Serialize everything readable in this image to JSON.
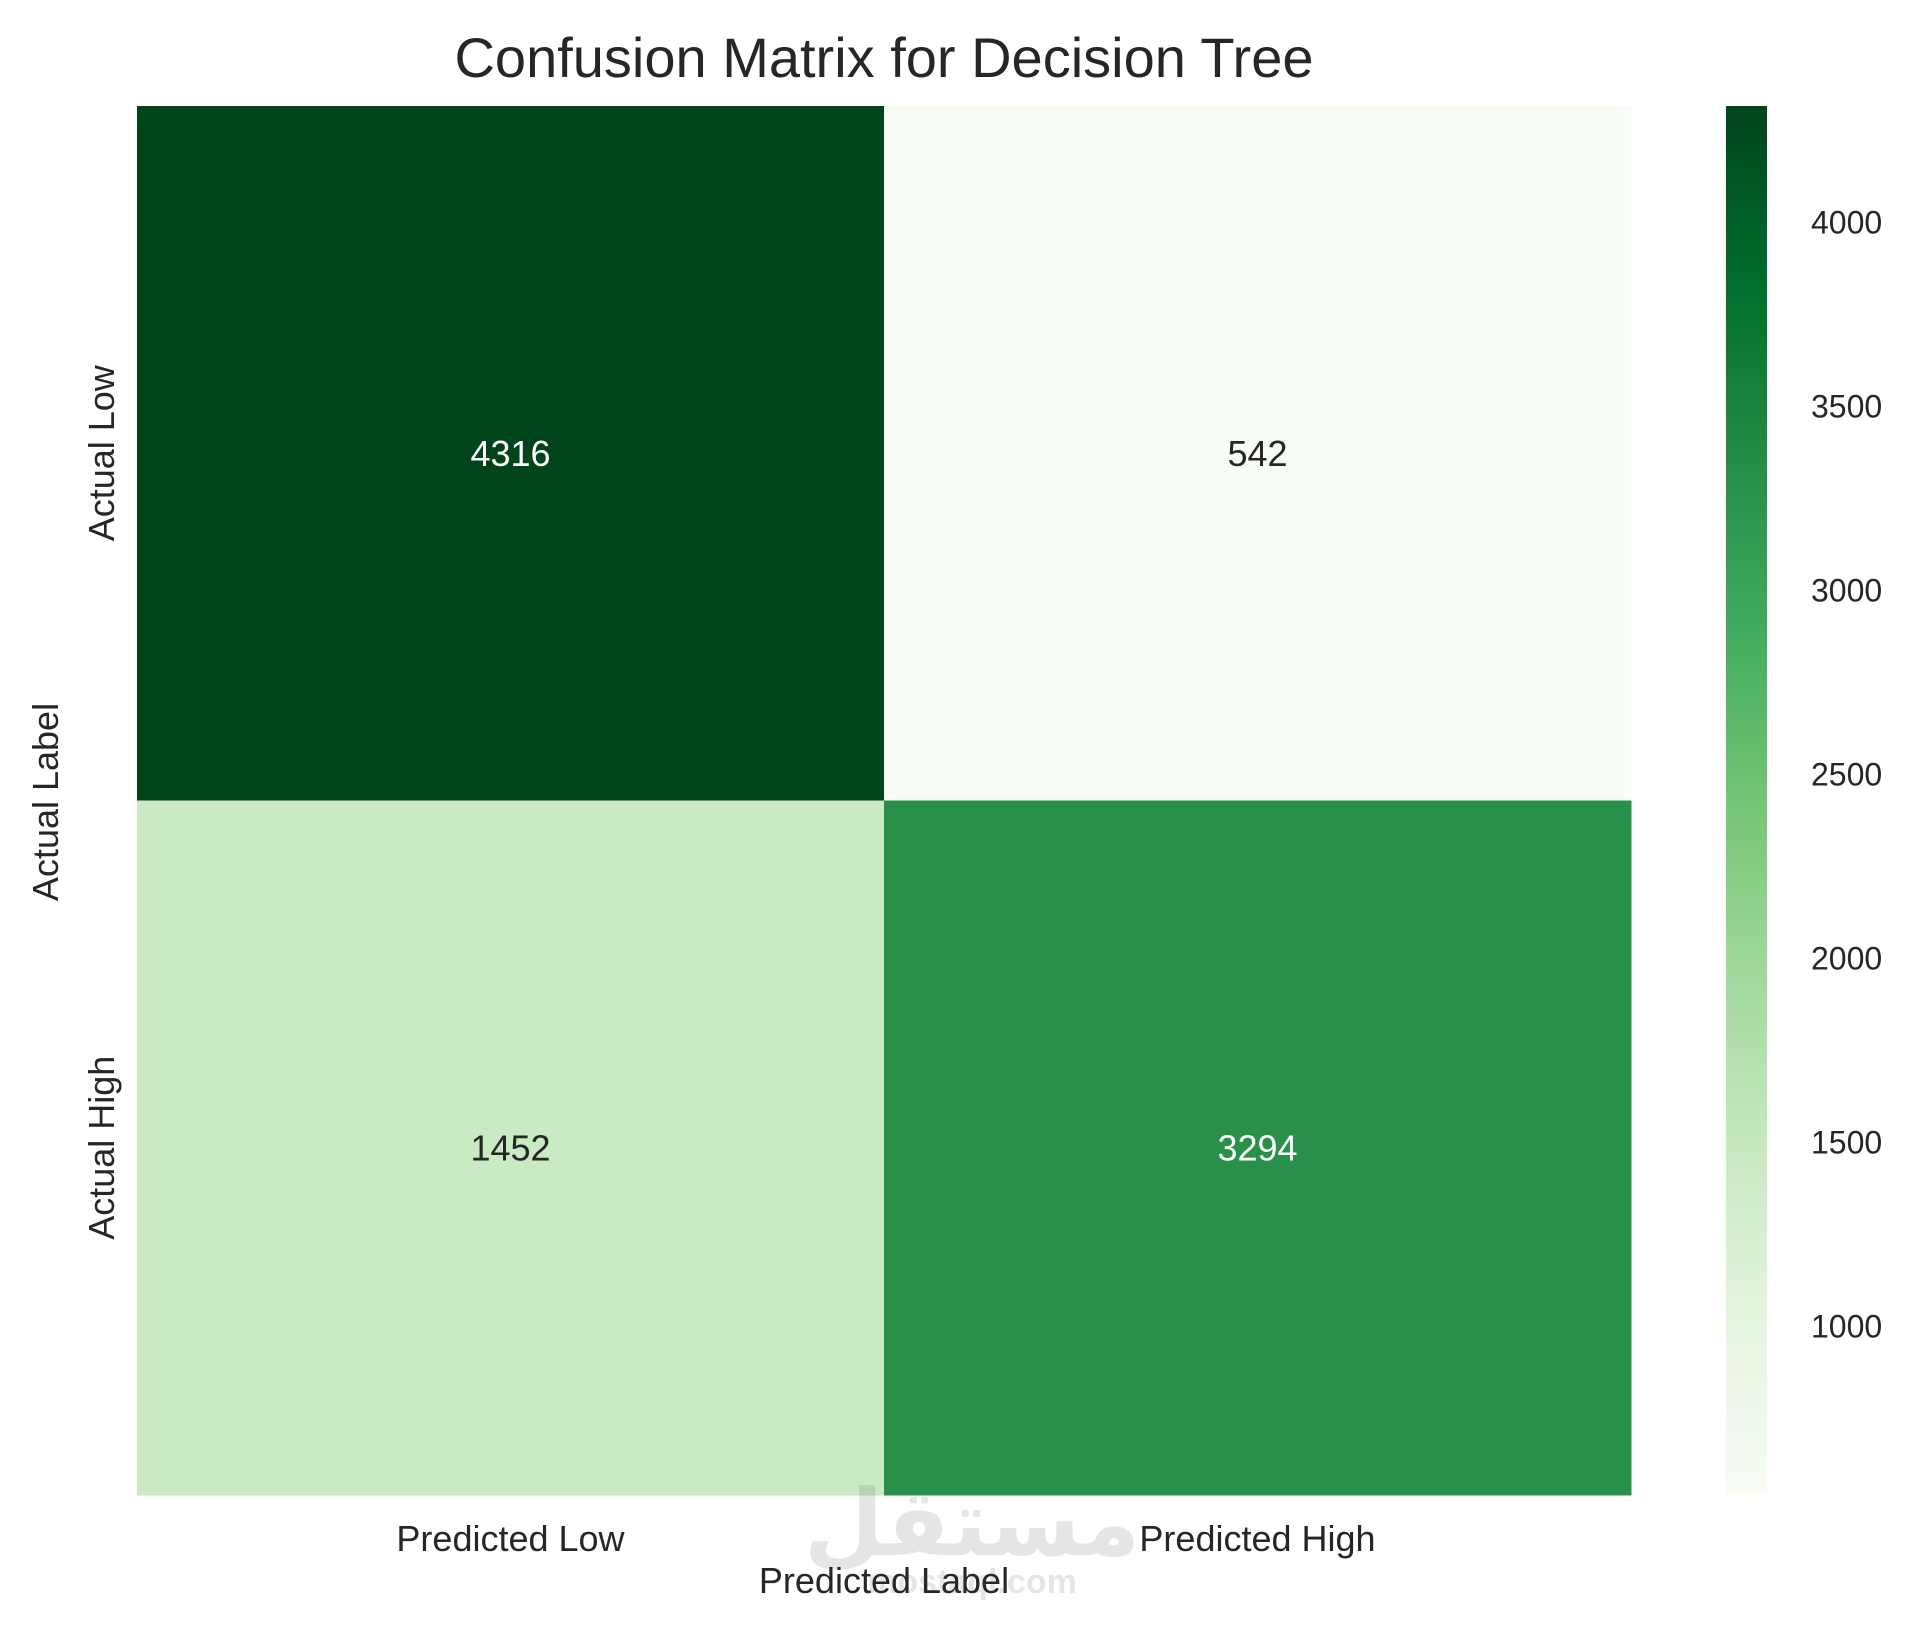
{
  "chart_data": {
    "type": "heatmap",
    "title": "Confusion Matrix for Decision Tree",
    "xlabel": "Predicted Label",
    "ylabel": "Actual Label",
    "x_categories": [
      "Predicted Low",
      "Predicted High"
    ],
    "y_categories": [
      "Actual Low",
      "Actual High"
    ],
    "values": [
      [
        4316,
        542
      ],
      [
        1452,
        3294
      ]
    ],
    "colormap": "Greens",
    "color_range": [
      542,
      4316
    ],
    "colorbar": {
      "ticks": [
        1000,
        1500,
        2000,
        2500,
        3000,
        3500,
        4000
      ],
      "tick_labels": [
        "1000",
        "1500",
        "2000",
        "2500",
        "3000",
        "3500",
        "4000"
      ]
    },
    "grid": false
  },
  "watermark": {
    "text_arabic": "مستقل",
    "text_latin": "mostaql.com"
  }
}
